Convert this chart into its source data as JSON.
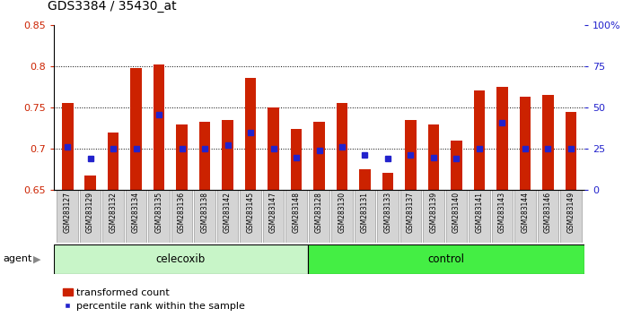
{
  "title": "GDS3384 / 35430_at",
  "samples": [
    "GSM283127",
    "GSM283129",
    "GSM283132",
    "GSM283134",
    "GSM283135",
    "GSM283136",
    "GSM283138",
    "GSM283142",
    "GSM283145",
    "GSM283147",
    "GSM283148",
    "GSM283128",
    "GSM283130",
    "GSM283131",
    "GSM283133",
    "GSM283137",
    "GSM283139",
    "GSM283140",
    "GSM283141",
    "GSM283143",
    "GSM283144",
    "GSM283146",
    "GSM283149"
  ],
  "red_values": [
    0.756,
    0.668,
    0.72,
    0.798,
    0.803,
    0.73,
    0.733,
    0.735,
    0.786,
    0.75,
    0.724,
    0.733,
    0.756,
    0.675,
    0.671,
    0.735,
    0.73,
    0.71,
    0.771,
    0.775,
    0.763,
    0.766,
    0.745
  ],
  "blue_values": [
    0.703,
    0.688,
    0.7,
    0.7,
    0.742,
    0.7,
    0.7,
    0.705,
    0.72,
    0.7,
    0.69,
    0.698,
    0.703,
    0.693,
    0.688,
    0.693,
    0.69,
    0.688,
    0.7,
    0.732,
    0.7,
    0.7,
    0.7
  ],
  "celecoxib_count": 11,
  "control_count": 12,
  "celecoxib_color": "#c8f5c8",
  "control_color": "#44ee44",
  "bar_color": "#cc2200",
  "dot_color": "#2222cc",
  "ylim_left": [
    0.65,
    0.85
  ],
  "ylim_right": [
    0,
    100
  ],
  "yticks_left": [
    0.65,
    0.7,
    0.75,
    0.8,
    0.85
  ],
  "yticks_right": [
    0,
    25,
    50,
    75,
    100
  ],
  "ytick_labels_right": [
    "0",
    "25",
    "50",
    "75",
    "100%"
  ],
  "bar_bottom": 0.65,
  "bar_width": 0.5,
  "grid_yticks": [
    0.7,
    0.75,
    0.8
  ],
  "xtick_box_color": "#d4d4d4",
  "legend_items": [
    "transformed count",
    "percentile rank within the sample"
  ]
}
